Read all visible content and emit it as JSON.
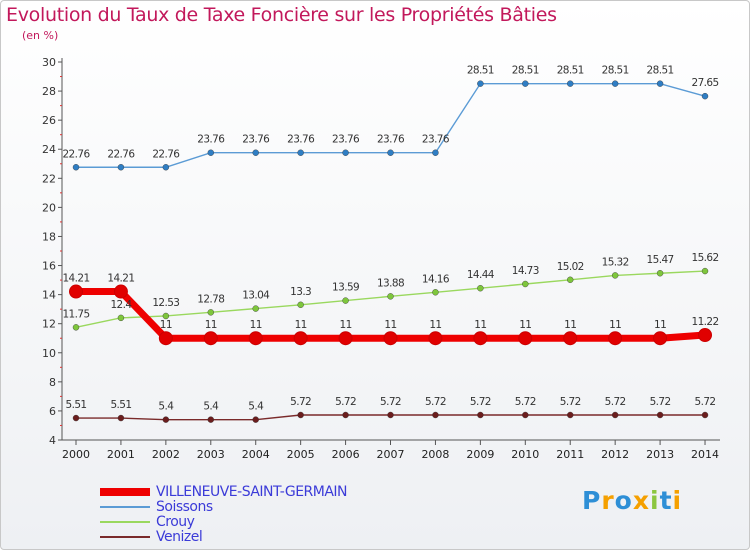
{
  "chart_data": {
    "type": "line",
    "title": "Evolution du Taux de Taxe Foncière sur les Propriétés Bâties",
    "subtitle": "(en %)",
    "x": [
      "2000",
      "2001",
      "2002",
      "2003",
      "2004",
      "2005",
      "2006",
      "2007",
      "2008",
      "2009",
      "2010",
      "2011",
      "2012",
      "2013",
      "2014"
    ],
    "ylim": [
      4,
      30
    ],
    "yticks": [
      4,
      6,
      8,
      10,
      12,
      14,
      16,
      18,
      20,
      22,
      24,
      26,
      28,
      30
    ],
    "series": [
      {
        "name": "Soissons",
        "color": "#5b9bd5",
        "marker": "#2f7ec4",
        "values": [
          22.76,
          22.76,
          22.76,
          23.76,
          23.76,
          23.76,
          23.76,
          23.76,
          23.76,
          28.51,
          28.51,
          28.51,
          28.51,
          28.51,
          27.65
        ],
        "labels": [
          "22.76",
          "22.76",
          "22.76",
          "23.76",
          "23.76",
          "23.76",
          "23.76",
          "23.76",
          "23.76",
          "28.51",
          "28.51",
          "28.51",
          "28.51",
          "28.51",
          "27.65"
        ]
      },
      {
        "name": "Crouy",
        "color": "#9ad85e",
        "marker": "#7ec63c",
        "values": [
          11.75,
          12.4,
          12.53,
          12.78,
          13.04,
          13.3,
          13.59,
          13.88,
          14.16,
          14.44,
          14.73,
          15.02,
          15.32,
          15.47,
          15.62
        ],
        "labels": [
          "11.75",
          "12.4",
          "12.53",
          "12.78",
          "13.04",
          "13.3",
          "13.59",
          "13.88",
          "14.16",
          "14.44",
          "14.73",
          "15.02",
          "15.32",
          "15.47",
          "15.62"
        ]
      },
      {
        "name": "Venizel",
        "color": "#7a2a2a",
        "marker": "#6b1d1d",
        "values": [
          5.51,
          5.51,
          5.4,
          5.4,
          5.4,
          5.72,
          5.72,
          5.72,
          5.72,
          5.72,
          5.72,
          5.72,
          5.72,
          5.72,
          5.72
        ],
        "labels": [
          "5.51",
          "5.51",
          "5.4",
          "5.4",
          "5.4",
          "5.72",
          "5.72",
          "5.72",
          "5.72",
          "5.72",
          "5.72",
          "5.72",
          "5.72",
          "5.72",
          "5.72"
        ]
      },
      {
        "name": "VILLENEUVE-SAINT-GERMAIN",
        "color": "#ee0000",
        "marker": "#e00000",
        "highlight": true,
        "values": [
          14.21,
          14.21,
          11,
          11,
          11,
          11,
          11,
          11,
          11,
          11,
          11,
          11,
          11,
          11,
          11.22
        ],
        "labels": [
          "14.21",
          "14.21",
          "11",
          "11",
          "11",
          "11",
          "11",
          "11",
          "11",
          "11",
          "11",
          "11",
          "11",
          "11",
          "11.22"
        ]
      }
    ],
    "legend": [
      {
        "name": "VILLENEUVE-SAINT-GERMAIN",
        "color": "#ee0000",
        "thick": true
      },
      {
        "name": "Soissons",
        "color": "#5b9bd5"
      },
      {
        "name": "Crouy",
        "color": "#9ad85e"
      },
      {
        "name": "Venizel",
        "color": "#7a2a2a"
      }
    ]
  },
  "logo": {
    "letters": [
      "P",
      "r",
      "o",
      "x",
      "i",
      "t",
      "i"
    ],
    "colors": [
      "#2e8fd6",
      "#f5a000",
      "#2e8fd6",
      "#f5a000",
      "#8cc63f",
      "#2e8fd6",
      "#f5a000"
    ]
  }
}
